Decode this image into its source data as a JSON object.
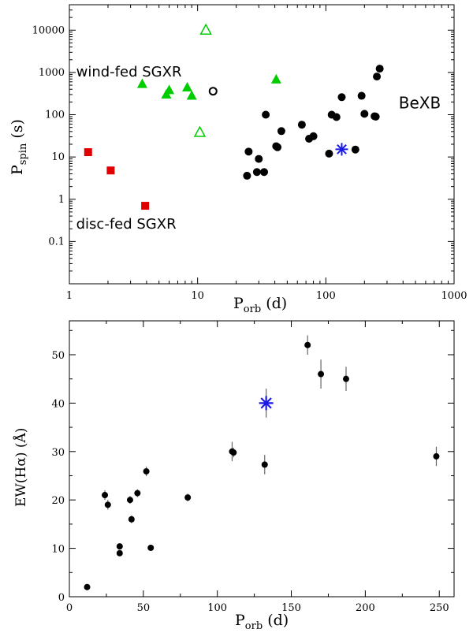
{
  "colors": {
    "black": "#000000",
    "green": "#00cc00",
    "red": "#e00000",
    "blue": "#1a1ae6"
  },
  "chart_data": [
    {
      "type": "scatter",
      "xscale": "log",
      "yscale": "log",
      "xlim": [
        1,
        1000
      ],
      "ylim": [
        0.01,
        40000
      ],
      "xticks": [
        1,
        10,
        100,
        1000
      ],
      "xtick_labels": [
        "1",
        "10",
        "100",
        "1000"
      ],
      "yticks": [
        0.1,
        1,
        10,
        100,
        1000,
        10000
      ],
      "ytick_labels": [
        "0.1",
        "1",
        "10",
        "100",
        "1000",
        "10000"
      ],
      "xlabel": {
        "base": "P",
        "sub": "orb",
        "rest": " (d)"
      },
      "ylabel": {
        "base": "P",
        "sub": "spin",
        "rest": " (s)"
      },
      "annotations": {
        "wind": {
          "text": "wind-fed SGXR",
          "x": 1.13,
          "y": 800
        },
        "disc": {
          "text": "disc-fed SGXR",
          "x": 1.13,
          "y": 0.2
        },
        "bexb": {
          "text": "BeXB",
          "x": 370,
          "y": 140
        }
      },
      "series": [
        {
          "name": "disc-fed SGXR",
          "marker": "square",
          "color": "#e00000",
          "points": [
            [
              1.4,
              13
            ],
            [
              2.1,
              4.8
            ],
            [
              3.9,
              0.7
            ]
          ]
        },
        {
          "name": "wind-fed SGXR (filled)",
          "marker": "triangle",
          "color": "#00cc00",
          "points": [
            [
              3.7,
              530
            ],
            [
              5.7,
              300
            ],
            [
              6.0,
              380
            ],
            [
              8.3,
              440
            ],
            [
              9.0,
              280
            ],
            [
              41,
              680
            ]
          ]
        },
        {
          "name": "wind-fed SGXR (open)",
          "marker": "triangle-open",
          "color": "#00cc00",
          "points": [
            [
              11.6,
              10000
            ],
            [
              10.4,
              38
            ]
          ]
        },
        {
          "name": "open circle",
          "marker": "circle-open",
          "color": "#000000",
          "points": [
            [
              13.2,
              360
            ]
          ]
        },
        {
          "name": "BeXB",
          "marker": "circle",
          "color": "#000000",
          "points": [
            [
              24.3,
              3.6
            ],
            [
              25,
              13.4
            ],
            [
              29,
              4.4
            ],
            [
              30,
              9.0
            ],
            [
              33,
              4.4
            ],
            [
              34,
              100
            ],
            [
              41,
              18
            ],
            [
              42,
              17
            ],
            [
              45,
              41
            ],
            [
              65,
              58
            ],
            [
              74,
              27
            ],
            [
              80,
              31
            ],
            [
              106,
              12
            ],
            [
              111,
              100
            ],
            [
              121,
              88
            ],
            [
              133,
              260
            ],
            [
              190,
              280
            ],
            [
              200,
              105
            ],
            [
              240,
              92
            ],
            [
              245,
              90
            ],
            [
              250,
              800
            ],
            [
              263,
              1230
            ],
            [
              170,
              15
            ]
          ]
        },
        {
          "name": "target",
          "marker": "asterisk",
          "color": "#1a1ae6",
          "points": [
            [
              133,
              15.2
            ]
          ]
        }
      ]
    },
    {
      "type": "scatter",
      "xlim": [
        0,
        260
      ],
      "ylim": [
        0,
        57
      ],
      "xticks": [
        0,
        50,
        100,
        150,
        200,
        250
      ],
      "xtick_labels": [
        "0",
        "50",
        "100",
        "150",
        "200",
        "250"
      ],
      "yticks": [
        0,
        10,
        20,
        30,
        40,
        50
      ],
      "ytick_labels": [
        "0",
        "10",
        "20",
        "30",
        "40",
        "50"
      ],
      "xlabel": {
        "base": "P",
        "sub": "orb",
        "rest": " (d)"
      },
      "ylabel": {
        "text": "EW(Hα) (Å)"
      },
      "series": [
        {
          "name": "BeXB",
          "marker": "circle",
          "color": "#000000",
          "points": [
            {
              "x": 12,
              "y": 2.0,
              "err": 0
            },
            {
              "x": 24,
              "y": 21,
              "err": 1.0
            },
            {
              "x": 26,
              "y": 19,
              "err": 1.0
            },
            {
              "x": 34,
              "y": 10.4,
              "err": 0.6
            },
            {
              "x": 34,
              "y": 9.0,
              "err": 0.6
            },
            {
              "x": 41,
              "y": 20,
              "err": 0.8
            },
            {
              "x": 42,
              "y": 16,
              "err": 0.8
            },
            {
              "x": 46,
              "y": 21.4,
              "err": 0.8
            },
            {
              "x": 52,
              "y": 25.9,
              "err": 1.0
            },
            {
              "x": 55,
              "y": 10.1,
              "err": 0
            },
            {
              "x": 80,
              "y": 20.5,
              "err": 0.8
            },
            {
              "x": 110,
              "y": 30,
              "err": 2.0
            },
            {
              "x": 111,
              "y": 29.8,
              "err": 1.0
            },
            {
              "x": 132,
              "y": 27.3,
              "err": 2.0
            },
            {
              "x": 161,
              "y": 52,
              "err": 2.0
            },
            {
              "x": 170,
              "y": 46,
              "err": 3.0
            },
            {
              "x": 187,
              "y": 45,
              "err": 2.5
            },
            {
              "x": 248,
              "y": 29,
              "err": 2.0
            }
          ]
        },
        {
          "name": "target",
          "marker": "asterisk",
          "color": "#1a1ae6",
          "points": [
            {
              "x": 133,
              "y": 40,
              "err": 3.0
            }
          ]
        }
      ]
    }
  ]
}
